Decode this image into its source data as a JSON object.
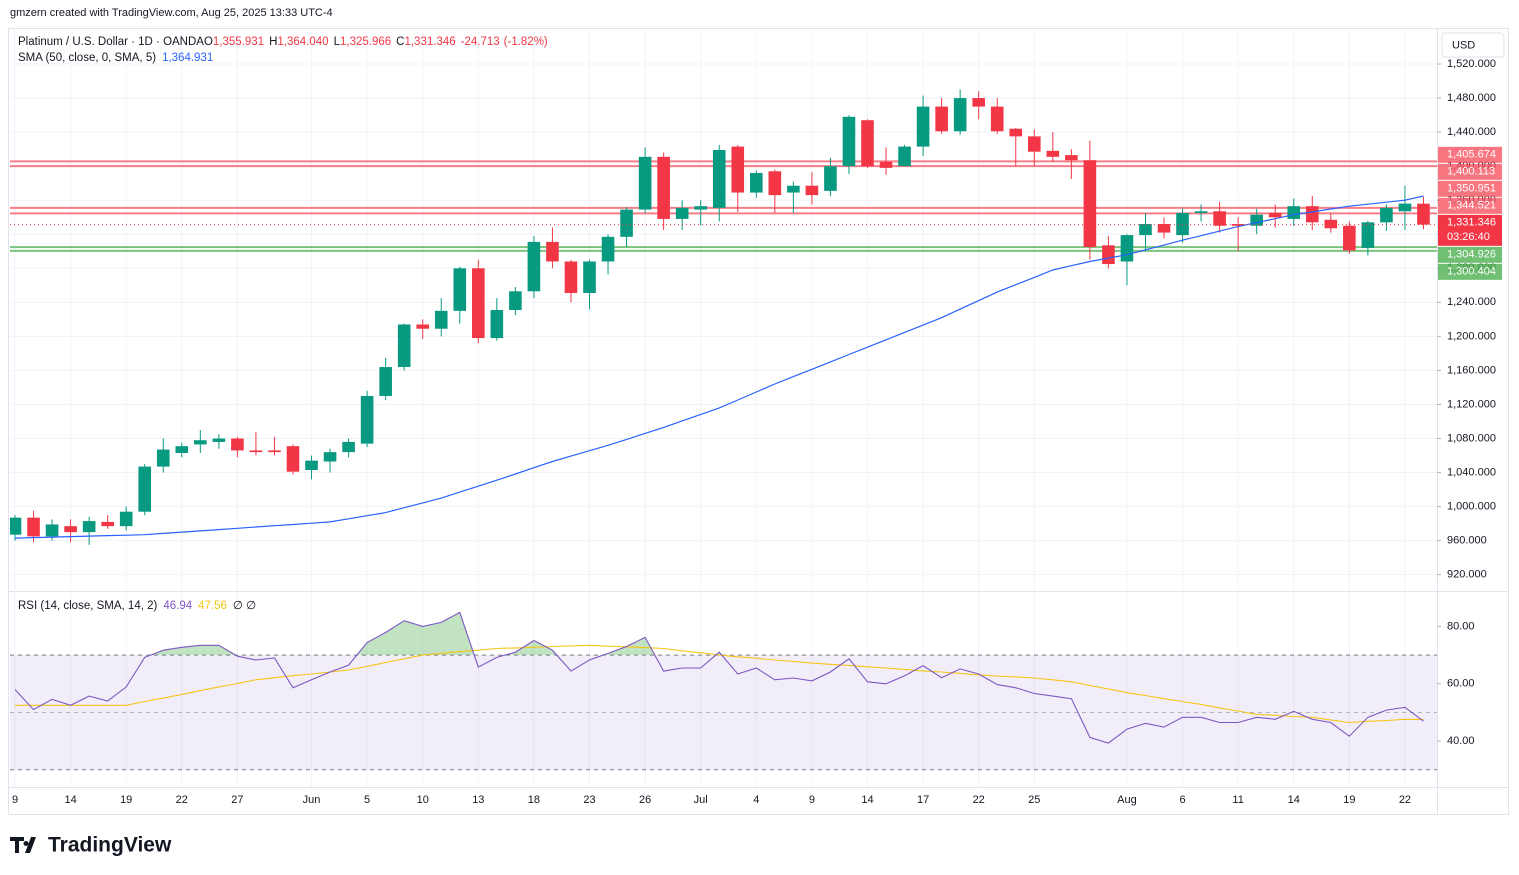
{
  "header": {
    "credit": "gmzern created with TradingView.com, Aug 25, 2025 13:33 UTC-4",
    "logo": "TradingView"
  },
  "chart_data": [
    {
      "type": "candlestick",
      "symbol": "Platinum / U.S. Dollar · 1D · OANDA",
      "ohlc_legend": [
        {
          "label": "O",
          "value": "1,355.931"
        },
        {
          "label": "H",
          "value": "1,364.040"
        },
        {
          "label": "L",
          "value": "1,325.966"
        },
        {
          "label": "C",
          "value": "1,331.346"
        }
      ],
      "change": "-24.713",
      "change_pct": "(-1.82%)",
      "categories": [
        "9",
        null,
        null,
        "14",
        null,
        null,
        "19",
        null,
        null,
        "22",
        null,
        null,
        "27",
        null,
        null,
        null,
        "Jun",
        null,
        null,
        "5",
        null,
        null,
        "10",
        null,
        null,
        "13",
        null,
        null,
        "18",
        null,
        null,
        "23",
        null,
        null,
        "26",
        null,
        null,
        "Jul",
        null,
        null,
        "4",
        null,
        null,
        "9",
        null,
        null,
        "14",
        null,
        null,
        "17",
        null,
        null,
        "22",
        null,
        null,
        "25",
        null,
        null,
        null,
        null,
        "Aug",
        null,
        null,
        "6",
        null,
        null,
        "11",
        null,
        null,
        "14",
        null,
        null,
        "19",
        null,
        null,
        "22",
        null
      ],
      "open": [
        967,
        987,
        965,
        977,
        970,
        982,
        977,
        994,
        1047,
        1063,
        1073,
        1076,
        1080,
        1066,
        1066,
        1071,
        1043,
        1053,
        1064,
        1074,
        1130,
        1164,
        1214,
        1209,
        1230,
        1280,
        1198,
        1231,
        1253,
        1311,
        1288,
        1251,
        1288,
        1317,
        1349,
        1411,
        1338,
        1349,
        1351,
        1423,
        1369,
        1394,
        1369,
        1377,
        1371,
        1400,
        1454,
        1405,
        1400,
        1423,
        1470,
        1441,
        1480,
        1470,
        1444,
        1435,
        1418,
        1413,
        1407,
        1307,
        1288,
        1319,
        1332,
        1319,
        1345,
        1347,
        1332,
        1330,
        1345,
        1338,
        1353,
        1337,
        1330,
        1304,
        1334,
        1347,
        1355.931
      ],
      "high": [
        990,
        995,
        985,
        985,
        988,
        990,
        1000,
        1050,
        1080,
        1075,
        1090,
        1085,
        1082,
        1088,
        1082,
        1073,
        1060,
        1068,
        1080,
        1136,
        1175,
        1215,
        1220,
        1245,
        1282,
        1290,
        1245,
        1258,
        1318,
        1328,
        1290,
        1290,
        1320,
        1352,
        1422,
        1416,
        1360,
        1360,
        1425,
        1425,
        1395,
        1396,
        1382,
        1393,
        1410,
        1460,
        1455,
        1422,
        1425,
        1483,
        1480,
        1490,
        1488,
        1480,
        1445,
        1443,
        1440,
        1420,
        1430,
        1318,
        1320,
        1345,
        1340,
        1350,
        1355,
        1358,
        1340,
        1350,
        1355,
        1362,
        1365,
        1345,
        1335,
        1336,
        1355,
        1377,
        1364.04
      ],
      "low": [
        960,
        958,
        960,
        958,
        955,
        974,
        972,
        990,
        1040,
        1058,
        1063,
        1068,
        1058,
        1060,
        1060,
        1038,
        1032,
        1040,
        1058,
        1070,
        1125,
        1160,
        1197,
        1200,
        1215,
        1192,
        1195,
        1225,
        1245,
        1280,
        1240,
        1232,
        1273,
        1305,
        1345,
        1325,
        1325,
        1330,
        1335,
        1346,
        1363,
        1345,
        1345,
        1355,
        1365,
        1391,
        1398,
        1390,
        1400,
        1412,
        1438,
        1437,
        1455,
        1438,
        1400,
        1400,
        1405,
        1385,
        1290,
        1280,
        1260,
        1300,
        1315,
        1310,
        1335,
        1322,
        1300,
        1320,
        1328,
        1330,
        1325,
        1322,
        1297,
        1295,
        1324,
        1325,
        1325.966
      ],
      "close": [
        987,
        965,
        979,
        970,
        983,
        977,
        994,
        1047,
        1067,
        1071,
        1078,
        1080,
        1066,
        1064,
        1064,
        1041,
        1054,
        1064,
        1076,
        1130,
        1164,
        1214,
        1209,
        1230,
        1280,
        1198,
        1231,
        1253,
        1311,
        1288,
        1251,
        1288,
        1317,
        1349,
        1411,
        1338,
        1351,
        1353,
        1419,
        1369,
        1392,
        1366,
        1377,
        1366,
        1400,
        1458,
        1400,
        1398,
        1423,
        1470,
        1441,
        1480,
        1470,
        1441,
        1435,
        1417,
        1411,
        1407,
        1305,
        1285,
        1319,
        1332,
        1322,
        1345,
        1347,
        1330,
        1330,
        1343,
        1340,
        1353,
        1334,
        1327,
        1301,
        1334,
        1351,
        1356,
        1331.346
      ],
      "up_color": "#089981",
      "down_color": "#f23645",
      "series": [
        {
          "name": "SMA (50, close, 0, SMA, 5)",
          "color": "#2962ff",
          "last_label": "1,364.931",
          "values": [
            963,
            963.6,
            964.1,
            964.7,
            965.3,
            965.9,
            966.4,
            967,
            968.5,
            970,
            971.5,
            973,
            974.5,
            976,
            977.5,
            979,
            980.5,
            982,
            985.7,
            989.3,
            993,
            998.7,
            1004.3,
            1010,
            1017,
            1024,
            1031,
            1038.3,
            1045.7,
            1053,
            1059.3,
            1065.7,
            1072,
            1079,
            1086,
            1093,
            1100.7,
            1108.3,
            1116,
            1125.3,
            1134.7,
            1144,
            1152.7,
            1161.3,
            1170,
            1178.7,
            1187.3,
            1196,
            1204.7,
            1213.3,
            1222,
            1232,
            1242,
            1252,
            1260.7,
            1269.3,
            1278,
            1283,
            1288,
            1292,
            1296,
            1301.7,
            1307.3,
            1313,
            1318.3,
            1323.7,
            1329,
            1333.7,
            1338.3,
            1343,
            1346.3,
            1349.7,
            1353,
            1355.3,
            1357.7,
            1360,
            1364.931
          ]
        }
      ],
      "ylim": [
        902,
        1560
      ],
      "yticks": [
        {
          "value": 920,
          "label": "920.000"
        },
        {
          "value": 960,
          "label": "960.000"
        },
        {
          "value": 1000,
          "label": "1,000.000"
        },
        {
          "value": 1040,
          "label": "1,040.000"
        },
        {
          "value": 1080,
          "label": "1,080.000"
        },
        {
          "value": 1120,
          "label": "1,120.000"
        },
        {
          "value": 1160,
          "label": "1,160.000"
        },
        {
          "value": 1200,
          "label": "1,200.000"
        },
        {
          "value": 1240,
          "label": "1,240.000"
        },
        {
          "value": 1280,
          "label": "1,280.000"
        },
        {
          "value": 1320,
          "label": "1,320.000"
        },
        {
          "value": 1360,
          "label": "1,360.000"
        },
        {
          "value": 1400,
          "label": "1,400.000"
        },
        {
          "value": 1440,
          "label": "1,440.000"
        },
        {
          "value": 1480,
          "label": "1,480.000"
        },
        {
          "value": 1520,
          "label": "1,520.000"
        }
      ],
      "grid": true,
      "currency": "USD",
      "levels": [
        {
          "value": 1405.674,
          "label": "1,405.674",
          "color": "#f7525f"
        },
        {
          "value": 1400.113,
          "label": "1,400.113",
          "color": "#f7525f"
        },
        {
          "value": 1350.951,
          "label": "1,350.951",
          "color": "#f7525f"
        },
        {
          "value": 1344.521,
          "label": "1,344.521",
          "color": "#f7525f"
        },
        {
          "value": 1304.926,
          "label": "1,304.926",
          "color": "#4caf50"
        },
        {
          "value": 1300.404,
          "label": "1,300.404",
          "color": "#4caf50"
        }
      ],
      "last_price_label": "1,331.346",
      "countdown": "03:26:40"
    },
    {
      "type": "line",
      "title": "RSI (14, close, SMA, 14, 2)",
      "extra": "∅ ∅",
      "series": [
        {
          "color": "#7e57c2",
          "last_label": "46.94",
          "values": [
            58,
            51,
            54.6,
            52.5,
            55.7,
            54,
            58.9,
            69.2,
            71.7,
            72.7,
            73.4,
            73.4,
            69.6,
            68.3,
            69,
            58.6,
            61.4,
            64.1,
            66.5,
            74.4,
            77.9,
            82,
            80,
            81.4,
            84.9,
            65.8,
            69.2,
            71,
            75.1,
            71.7,
            64.4,
            68.3,
            70.6,
            73,
            76.2,
            64.4,
            65.5,
            65.5,
            71,
            63.4,
            65.5,
            61.4,
            62,
            61,
            64.1,
            68.7,
            60.7,
            60,
            62.8,
            66.3,
            62.1,
            65.2,
            63.4,
            59.7,
            58.6,
            56.6,
            55.7,
            54.8,
            41.3,
            39.3,
            44.2,
            46.2,
            44.9,
            48.3,
            48.3,
            46.5,
            46.5,
            48.3,
            47.6,
            50.4,
            47.6,
            46.5,
            41.7,
            48.3,
            50.8,
            51.8,
            46.94
          ]
        },
        {
          "color": "#f5c518",
          "last_label": "47.56",
          "values": [
            52.5,
            52.5,
            52.5,
            52.5,
            52.5,
            52.5,
            52.5,
            53.8,
            55.0,
            56.3,
            57.6,
            58.9,
            60.1,
            61.4,
            62.1,
            62.8,
            63.4,
            64.1,
            64.8,
            66.1,
            67.4,
            68.7,
            70,
            70.6,
            71.2,
            71.7,
            72.3,
            72.5,
            72.7,
            73.0,
            73.2,
            73.4,
            73.1,
            72.9,
            72.6,
            72.3,
            71.5,
            70.8,
            70,
            69.4,
            68.9,
            68.3,
            67.8,
            67.2,
            66.8,
            66.4,
            65.9,
            65.5,
            65.0,
            64.5,
            64.1,
            63.6,
            63.1,
            62.7,
            62.4,
            62,
            61.4,
            60.7,
            59.4,
            58.2,
            56.9,
            55.9,
            54.8,
            53.8,
            52.8,
            51.6,
            50.5,
            49.3,
            49.0,
            48.6,
            48.3,
            47.4,
            46.5,
            46.9,
            47.2,
            47.6,
            47.56
          ]
        }
      ],
      "ylim": [
        24,
        92
      ],
      "yticks": [
        {
          "value": 40,
          "label": "40.00"
        },
        {
          "value": 60,
          "label": "60.00"
        },
        {
          "value": 80,
          "label": "80.00"
        }
      ],
      "bands": [
        70,
        30
      ],
      "midline": 50,
      "band_color": "#7e57c2",
      "overbought_color": "#4caf50"
    }
  ]
}
